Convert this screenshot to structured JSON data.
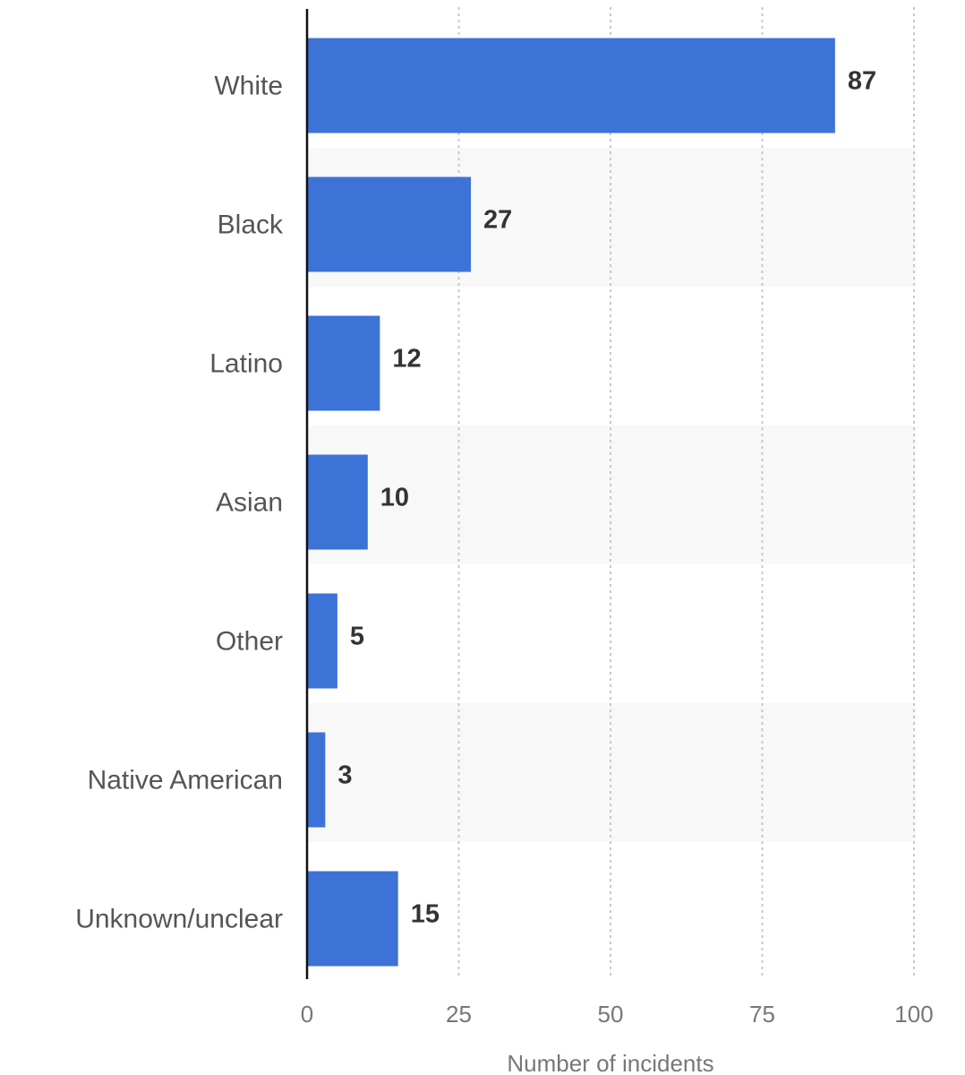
{
  "chart_data": {
    "type": "bar",
    "orientation": "horizontal",
    "categories": [
      "White",
      "Black",
      "Latino",
      "Asian",
      "Other",
      "Native American",
      "Unknown/unclear"
    ],
    "values": [
      87,
      27,
      12,
      10,
      5,
      3,
      15
    ],
    "title": "",
    "xlabel": "Number of incidents",
    "ylabel": "",
    "xlim": [
      0,
      100
    ],
    "xticks": [
      0,
      25,
      50,
      75,
      100
    ],
    "grid": true,
    "bar_color": "#3d72d7",
    "band_color": "#f8f8f8"
  }
}
